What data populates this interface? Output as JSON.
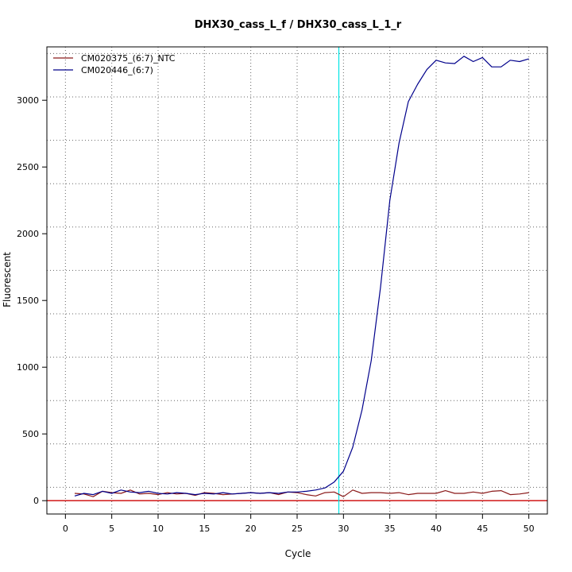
{
  "chart_data": {
    "type": "line",
    "title": "DHX30_cass_L_f / DHX30_cass_L_1_r",
    "xlabel": "Cycle",
    "ylabel": "Fluorescent",
    "xlim": [
      -2,
      52
    ],
    "ylim": [
      -100,
      3400
    ],
    "xticks": [
      0,
      5,
      10,
      15,
      20,
      25,
      30,
      35,
      40,
      45,
      50
    ],
    "yticks": [
      0,
      500,
      1000,
      1500,
      2000,
      2500,
      3000
    ],
    "xgrid": [
      0,
      5,
      10,
      15,
      20,
      25,
      30,
      35,
      40,
      45,
      50
    ],
    "ygrid": [
      100,
      425,
      750,
      1075,
      1400,
      1725,
      2050,
      2375,
      2700,
      3025,
      3350
    ],
    "grid": true,
    "legend_position": "top-left",
    "threshold_x": 29.5,
    "threshold_color": "#00e5e5",
    "baseline_y": 0,
    "baseline_color": "#cc0000",
    "x": [
      1,
      2,
      3,
      4,
      5,
      6,
      7,
      8,
      9,
      10,
      11,
      12,
      13,
      14,
      15,
      16,
      17,
      18,
      19,
      20,
      21,
      22,
      23,
      24,
      25,
      26,
      27,
      28,
      29,
      30,
      31,
      32,
      33,
      34,
      35,
      36,
      37,
      38,
      39,
      40,
      41,
      42,
      43,
      44,
      45,
      46,
      47,
      48,
      49,
      50
    ],
    "series": [
      {
        "name": "CM020375_(6:7)_NTC",
        "color": "#8b1a1a",
        "values": [
          55,
          50,
          30,
          70,
          60,
          55,
          80,
          50,
          55,
          45,
          60,
          50,
          55,
          40,
          60,
          55,
          45,
          50,
          55,
          60,
          55,
          60,
          45,
          65,
          60,
          45,
          35,
          60,
          65,
          30,
          80,
          55,
          60,
          60,
          55,
          60,
          45,
          55,
          55,
          55,
          75,
          55,
          55,
          65,
          55,
          70,
          75,
          45,
          50,
          60
        ]
      },
      {
        "name": "CM020446_(6:7)",
        "color": "#00008b",
        "values": [
          35,
          55,
          45,
          70,
          55,
          80,
          65,
          60,
          70,
          55,
          50,
          60,
          55,
          45,
          55,
          50,
          60,
          50,
          55,
          60,
          55,
          60,
          55,
          65,
          65,
          70,
          80,
          95,
          140,
          220,
          400,
          680,
          1050,
          1600,
          2250,
          2680,
          2990,
          3120,
          3230,
          3300,
          3280,
          3275,
          3330,
          3290,
          3320,
          3250,
          3250,
          3300,
          3290,
          3310
        ]
      }
    ]
  }
}
